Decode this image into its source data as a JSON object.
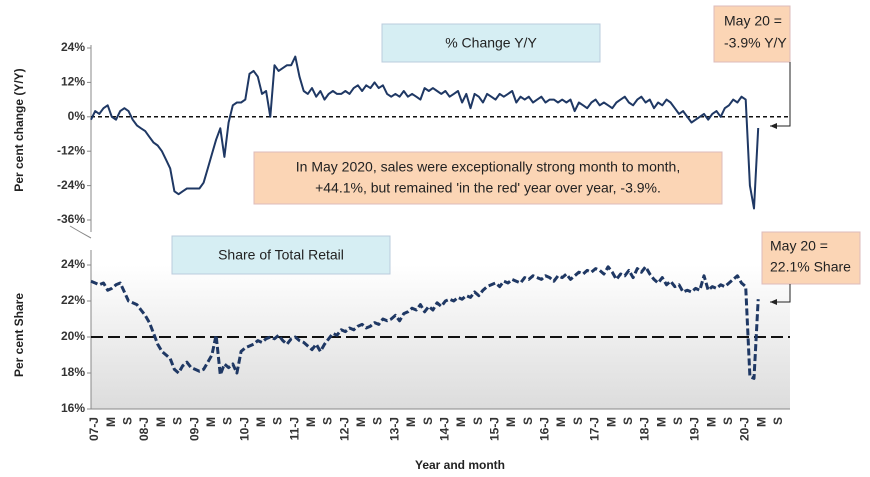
{
  "chart_data": [
    {
      "type": "line",
      "title": "% Change Y/Y",
      "ylabel": "Per cent change (Y/Y)",
      "ylim": [
        -36,
        24
      ],
      "yticks": [
        {
          "value": -36,
          "label": "-36%"
        },
        {
          "value": -24,
          "label": "-24%"
        },
        {
          "value": -12,
          "label": "-12%"
        },
        {
          "value": 0,
          "label": "0%"
        },
        {
          "value": 12,
          "label": "12%"
        },
        {
          "value": 24,
          "label": "24%"
        }
      ],
      "reference_line": 0,
      "series": [
        {
          "color": "#1f3864",
          "values": [
            -1,
            2,
            1,
            3,
            4,
            0,
            -1,
            2,
            3,
            2,
            -1,
            -3,
            -4,
            -5,
            -7,
            -9,
            -10,
            -12,
            -15,
            -18,
            -26,
            -27,
            -26,
            -25,
            -25,
            -25,
            -25,
            -23,
            -18,
            -13,
            -8,
            -4,
            -14,
            -2,
            4,
            5,
            5,
            6,
            15,
            16,
            14,
            8,
            9,
            0,
            18,
            16,
            17,
            18,
            18,
            21,
            14,
            9,
            8,
            10,
            7,
            9,
            6,
            8,
            9,
            8,
            8,
            9,
            8,
            10,
            11,
            9,
            11,
            10,
            12,
            10,
            11,
            8,
            7,
            8,
            7,
            9,
            7,
            8,
            7,
            6,
            10,
            9,
            10,
            9,
            8,
            9,
            7,
            8,
            9,
            5,
            8,
            3,
            8,
            7,
            5,
            8,
            7,
            6,
            8,
            7,
            8,
            9,
            5,
            7,
            6,
            7,
            5,
            6,
            7,
            5,
            6,
            6,
            5,
            6,
            5,
            6,
            2,
            5,
            4,
            3,
            5,
            6,
            4,
            5,
            4,
            3,
            5,
            6,
            7,
            5,
            4,
            6,
            7,
            5,
            6,
            3,
            5,
            4,
            6,
            5,
            3,
            1,
            2,
            0,
            -2,
            -1,
            0,
            1,
            -1,
            1,
            2,
            0,
            3,
            4,
            6,
            5,
            7,
            6,
            -24,
            -32,
            -3.9,
            null,
            null,
            null,
            null
          ]
        }
      ],
      "annotations": [
        {
          "text": [
            "May 20 =",
            "-3.9% Y/Y"
          ]
        },
        {
          "text": [
            "In May 2020, sales were exceptionally strong month to month,",
            "+44.1%, but remained 'in the red' year over year, -3.9%."
          ]
        }
      ]
    },
    {
      "type": "line",
      "title": "Share of Total Retail",
      "ylabel": "Per cent Share",
      "xlabel": "Year and month",
      "ylim": [
        16,
        24
      ],
      "yticks": [
        {
          "value": 16,
          "label": "16%"
        },
        {
          "value": 18,
          "label": "18%"
        },
        {
          "value": 20,
          "label": "20%"
        },
        {
          "value": 22,
          "label": "22%"
        },
        {
          "value": 24,
          "label": "24%"
        }
      ],
      "reference_line": 20,
      "categories": [
        "07-J",
        null,
        null,
        null,
        "M",
        null,
        null,
        null,
        "S",
        null,
        null,
        null,
        "08-J",
        null,
        null,
        null,
        "M",
        null,
        null,
        null,
        "S",
        null,
        null,
        null,
        "09-J",
        null,
        null,
        null,
        "M",
        null,
        null,
        null,
        "S",
        null,
        null,
        null,
        "10-J",
        null,
        null,
        null,
        "M",
        null,
        null,
        null,
        "S",
        null,
        null,
        null,
        "11-J",
        null,
        null,
        null,
        "M",
        null,
        null,
        null,
        "S",
        null,
        null,
        null,
        "12-J",
        null,
        null,
        null,
        "M",
        null,
        null,
        null,
        "S",
        null,
        null,
        null,
        "13-J",
        null,
        null,
        null,
        "M",
        null,
        null,
        null,
        "S",
        null,
        null,
        null,
        "14-J",
        null,
        null,
        null,
        "M",
        null,
        null,
        null,
        "S",
        null,
        null,
        null,
        "15-J",
        null,
        null,
        null,
        "M",
        null,
        null,
        null,
        "S",
        null,
        null,
        null,
        "16-J",
        null,
        null,
        null,
        "M",
        null,
        null,
        null,
        "S",
        null,
        null,
        null,
        "17-J",
        null,
        null,
        null,
        "M",
        null,
        null,
        null,
        "S",
        null,
        null,
        null,
        "18-J",
        null,
        null,
        null,
        "M",
        null,
        null,
        null,
        "S",
        null,
        null,
        null,
        "19-J",
        null,
        null,
        null,
        "M",
        null,
        null,
        null,
        "S",
        null,
        null,
        null,
        "20-J",
        null,
        null,
        null,
        "M",
        null,
        null,
        null,
        "S"
      ],
      "series": [
        {
          "color": "#1f3864",
          "values": [
            23.1,
            23.0,
            22.9,
            23.0,
            22.6,
            22.7,
            22.9,
            23.0,
            22.5,
            22.0,
            21.9,
            21.8,
            21.5,
            21.2,
            20.8,
            20.2,
            19.6,
            19.2,
            19.0,
            18.8,
            18.2,
            18.0,
            18.4,
            18.6,
            18.3,
            18.2,
            18.1,
            18.2,
            18.6,
            19.0,
            20.1,
            17.9,
            18.5,
            18.3,
            18.5,
            18.0,
            19.2,
            19.4,
            19.5,
            19.6,
            19.8,
            19.7,
            19.9,
            20.0,
            19.9,
            20.1,
            19.8,
            19.6,
            19.9,
            20.0,
            19.8,
            19.7,
            19.5,
            19.3,
            19.6,
            19.2,
            19.6,
            19.9,
            20.2,
            20.1,
            20.4,
            20.3,
            20.5,
            20.4,
            20.6,
            20.7,
            20.5,
            20.6,
            20.8,
            20.7,
            21.0,
            20.9,
            21.0,
            21.2,
            20.9,
            21.3,
            21.4,
            21.6,
            21.5,
            21.8,
            21.4,
            21.7,
            21.5,
            21.9,
            21.7,
            22.0,
            22.1,
            22.0,
            22.2,
            22.1,
            22.3,
            22.2,
            22.5,
            22.3,
            22.6,
            22.8,
            22.9,
            23.0,
            22.8,
            23.1,
            23.0,
            23.2,
            23.1,
            23.0,
            23.3,
            23.2,
            23.4,
            23.3,
            23.2,
            23.4,
            23.3,
            23.1,
            23.4,
            23.3,
            23.5,
            23.2,
            23.4,
            23.6,
            23.5,
            23.7,
            23.6,
            23.8,
            23.7,
            23.5,
            23.9,
            23.6,
            23.2,
            23.5,
            23.4,
            23.7,
            23.3,
            23.8,
            23.6,
            23.9,
            23.5,
            23.2,
            23.0,
            23.3,
            22.9,
            23.1,
            22.8,
            22.9,
            22.5,
            22.6,
            22.5,
            22.7,
            22.6,
            23.4,
            22.6,
            22.8,
            22.7,
            22.9,
            22.8,
            23.0,
            23.2,
            23.4,
            23.0,
            22.8,
            17.8,
            17.7,
            22.1,
            null,
            null,
            null,
            null
          ]
        }
      ],
      "annotations": [
        {
          "text": [
            "May 20 =",
            "22.1% Share"
          ]
        }
      ]
    }
  ]
}
